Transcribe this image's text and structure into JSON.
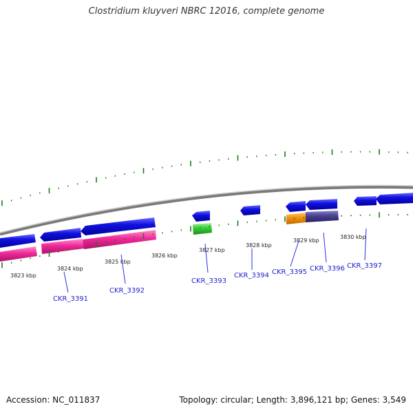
{
  "title": "Clostridium kluyveri NBRC 12016, complete genome",
  "footer": {
    "accession": "Accession: NC_011837",
    "summary": "Topology: circular; Length: 3,896,121 bp; Genes: 3,549"
  },
  "scale_ticks": [
    "3823 kbp",
    "3824 kbp",
    "3825 kbp",
    "3826 kbp",
    "3827 kbp",
    "3828 kbp",
    "3829 kbp",
    "3830 kbp"
  ],
  "genes": [
    "CKR_3391",
    "CKR_3392",
    "CKR_3393",
    "CKR_3394",
    "CKR_3395",
    "CKR_3396",
    "CKR_3397"
  ],
  "colors": {
    "forward_cds": "#1010e0",
    "rrna": "#ee2a98",
    "trna": "#33cc33",
    "misc_feature": "#f2900a",
    "repeat": "#4a3d96",
    "backbone": "#8a8a8a",
    "ticks": "#1a7a1a",
    "label": "#1a1acc"
  }
}
